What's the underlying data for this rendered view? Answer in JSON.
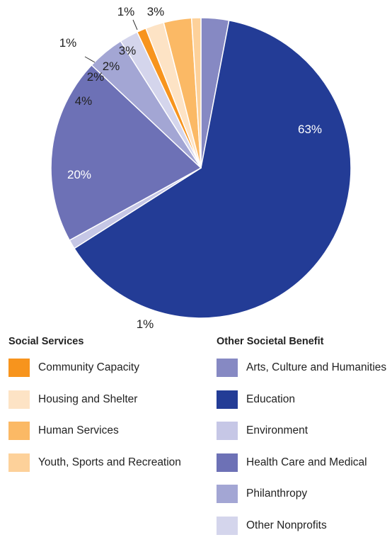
{
  "chart_data": {
    "type": "pie",
    "slices": [
      {
        "group": "Other Societal Benefit",
        "name": "Arts, Culture and Humanities",
        "value": 3,
        "label": "3%",
        "color": "#8689c3"
      },
      {
        "group": "Other Societal Benefit",
        "name": "Education",
        "value": 63,
        "label": "63%",
        "color": "#233c96"
      },
      {
        "group": "Other Societal Benefit",
        "name": "Environment",
        "value": 1,
        "label": "1%",
        "color": "#c6c7e6"
      },
      {
        "group": "Other Societal Benefit",
        "name": "Health Care and Medical",
        "value": 20,
        "label": "20%",
        "color": "#6d71b6"
      },
      {
        "group": "Other Societal Benefit",
        "name": "Philanthropy",
        "value": 4,
        "label": "4%",
        "color": "#a3a6d4"
      },
      {
        "group": "Other Societal Benefit",
        "name": "Other Nonprofits",
        "value": 2,
        "label": "2%",
        "color": "#d4d5ec"
      },
      {
        "group": "Social Services",
        "name": "Community Capacity",
        "value": 1,
        "label": "1%",
        "color": "#f7941d"
      },
      {
        "group": "Social Services",
        "name": "Housing and Shelter",
        "value": 2,
        "label": "2%",
        "color": "#fde3c5"
      },
      {
        "group": "Social Services",
        "name": "Human Services",
        "value": 3,
        "label": "3%",
        "color": "#fbb965"
      },
      {
        "group": "Social Services",
        "name": "Youth, Sports and Recreation",
        "value": 1,
        "label": "1%",
        "color": "#fdd19a"
      }
    ]
  },
  "legend": {
    "left_title": "Social Services",
    "left_items": [
      {
        "label": "Community Capacity",
        "color": "#f7941d"
      },
      {
        "label": "Housing and Shelter",
        "color": "#fde3c5"
      },
      {
        "label": "Human Services",
        "color": "#fbb965"
      },
      {
        "label": "Youth, Sports and Recreation",
        "color": "#fdd19a"
      }
    ],
    "right_title": "Other Societal Benefit",
    "right_items": [
      {
        "label": "Arts, Culture and Humanities",
        "color": "#8689c3"
      },
      {
        "label": "Education",
        "color": "#233c96"
      },
      {
        "label": "Environment",
        "color": "#c6c7e6"
      },
      {
        "label": "Health Care and Medical",
        "color": "#6d71b6"
      },
      {
        "label": "Philanthropy",
        "color": "#a3a6d4"
      },
      {
        "label": "Other Nonprofits",
        "color": "#d4d5ec"
      }
    ]
  }
}
